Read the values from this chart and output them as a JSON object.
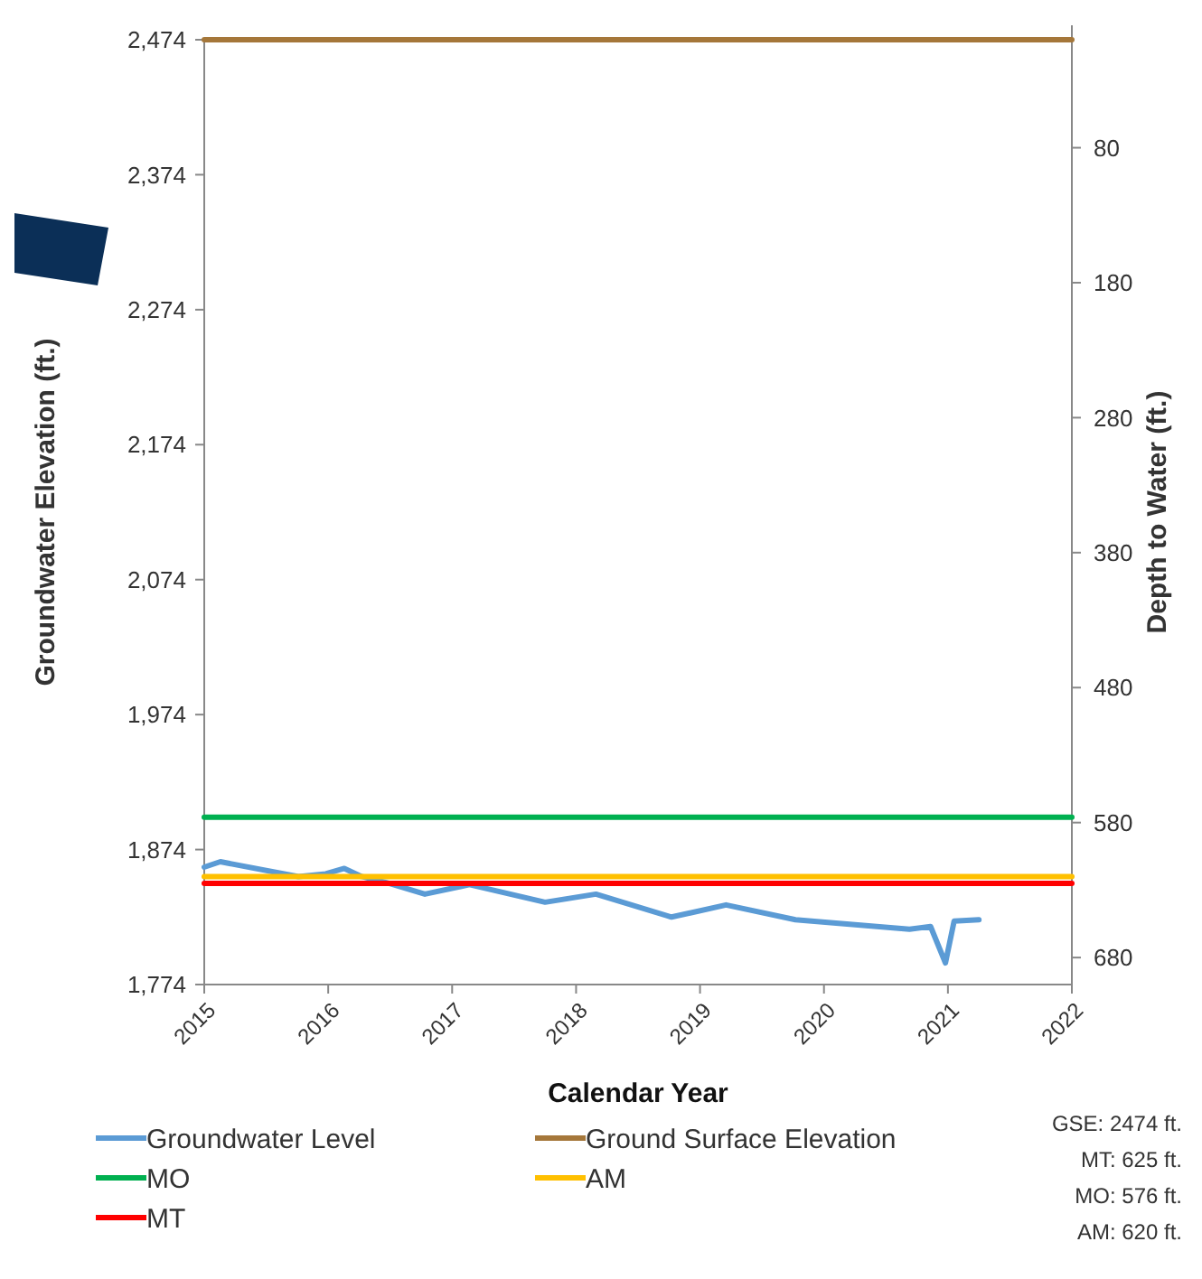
{
  "chart_data": {
    "type": "line",
    "xlabel": "Calendar Year",
    "ylabel": "Groundwater Elevation (ft.)",
    "y2label": "Depth to Water (ft.)",
    "xlim": [
      2015,
      2022
    ],
    "xticks": [
      2015,
      2016,
      2017,
      2018,
      2019,
      2020,
      2021,
      2022
    ],
    "ylim": [
      1774,
      2474
    ],
    "yticks": [
      {
        "value": 1774,
        "label": "1,774"
      },
      {
        "value": 1874,
        "label": "1,874"
      },
      {
        "value": 1974,
        "label": "1,974"
      },
      {
        "value": 2074,
        "label": "2,074"
      },
      {
        "value": 2174,
        "label": "2,174"
      },
      {
        "value": 2274,
        "label": "2,274"
      },
      {
        "value": 2374,
        "label": "2,374"
      },
      {
        "value": 2474,
        "label": "2,474"
      }
    ],
    "y2lim": [
      700,
      0
    ],
    "y2ticks": [
      80,
      180,
      280,
      380,
      480,
      580,
      680
    ],
    "series": [
      {
        "name": "Groundwater Level",
        "color": "#5b9bd5",
        "x": [
          2015.0,
          2015.13,
          2015.76,
          2015.98,
          2016.13,
          2016.27,
          2016.49,
          2016.78,
          2017.14,
          2017.75,
          2018.16,
          2018.77,
          2019.21,
          2019.77,
          2020.69,
          2020.86,
          2020.98,
          2021.05,
          2021.25
        ],
        "values": [
          1861,
          1865,
          1854,
          1856,
          1860,
          1854,
          1849,
          1841,
          1848,
          1835,
          1841,
          1824,
          1833,
          1822,
          1815,
          1817,
          1790,
          1821,
          1822
        ]
      },
      {
        "name": "Ground Surface Elevation",
        "color": "#a5773a",
        "x": [
          2015,
          2022
        ],
        "values": [
          2474,
          2474
        ]
      },
      {
        "name": "MO",
        "color": "#00b050",
        "x": [
          2015,
          2022
        ],
        "values": [
          1898,
          1898
        ]
      },
      {
        "name": "AM",
        "color": "#ffc000",
        "x": [
          2015,
          2022
        ],
        "values": [
          1854,
          1854
        ]
      },
      {
        "name": "MT",
        "color": "#ff0000",
        "x": [
          2015,
          2022
        ],
        "values": [
          1849,
          1849
        ]
      }
    ],
    "legend": "bottom",
    "grid": false,
    "marker": "none",
    "line_style": "solid",
    "annotations": [
      "GSE: 2474 ft.",
      "MT: 625 ft.",
      "MO: 576 ft.",
      "AM: 620 ft."
    ]
  }
}
